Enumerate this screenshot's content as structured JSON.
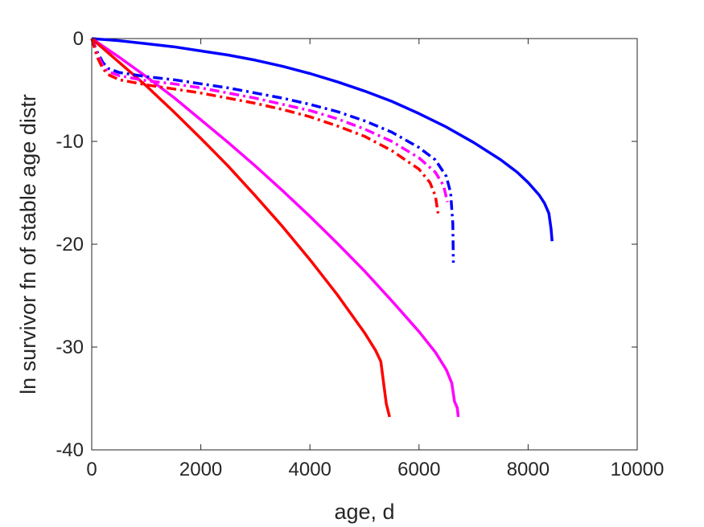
{
  "chart_data": {
    "type": "line",
    "title": "",
    "xlabel": "age, d",
    "ylabel": "ln survivor fn of stable age distr",
    "xlim": [
      0,
      10000
    ],
    "ylim": [
      -40,
      0
    ],
    "xticks": [
      0,
      2000,
      4000,
      6000,
      8000,
      10000
    ],
    "yticks": [
      0,
      -10,
      -20,
      -30,
      -40
    ],
    "xtick_labels": [
      "0",
      "2000",
      "4000",
      "6000",
      "8000",
      "10000"
    ],
    "ytick_labels": [
      "0",
      "-10",
      "-20",
      "-30",
      "-40"
    ],
    "grid": false,
    "legend": "none",
    "series": [
      {
        "color": "#0000ff",
        "style": "solid",
        "x": [
          0,
          500,
          1000,
          1500,
          2000,
          2500,
          3000,
          3500,
          4000,
          4500,
          5000,
          5500,
          6000,
          6500,
          7000,
          7500,
          7800,
          8000,
          8200,
          8300,
          8380,
          8420,
          8440
        ],
        "y": [
          0,
          -0.2,
          -0.5,
          -0.8,
          -1.2,
          -1.6,
          -2.1,
          -2.7,
          -3.4,
          -4.2,
          -5.1,
          -6.1,
          -7.3,
          -8.6,
          -10.1,
          -11.8,
          -13.0,
          -14.0,
          -15.2,
          -16.0,
          -17.0,
          -18.5,
          -19.7
        ]
      },
      {
        "color": "#ff00ff",
        "style": "solid",
        "x": [
          0,
          500,
          1000,
          1500,
          2000,
          2500,
          3000,
          3500,
          4000,
          4500,
          5000,
          5500,
          6000,
          6300,
          6500,
          6600,
          6650,
          6700,
          6720
        ],
        "y": [
          0,
          -1.8,
          -3.7,
          -5.7,
          -7.9,
          -10.1,
          -12.4,
          -14.8,
          -17.3,
          -19.9,
          -22.6,
          -25.5,
          -28.5,
          -30.5,
          -32.2,
          -33.5,
          -35.3,
          -35.9,
          -36.8
        ]
      },
      {
        "color": "#ff0000",
        "style": "solid",
        "x": [
          0,
          500,
          1000,
          1500,
          2000,
          2500,
          3000,
          3500,
          4000,
          4500,
          5000,
          5200,
          5300,
          5400,
          5460
        ],
        "y": [
          0,
          -2.3,
          -4.6,
          -7.1,
          -9.7,
          -12.4,
          -15.3,
          -18.3,
          -21.5,
          -24.9,
          -28.6,
          -30.3,
          -31.4,
          -35.5,
          -36.8
        ]
      },
      {
        "color": "#0000ff",
        "style": "dashdot",
        "x": [
          0,
          100,
          200,
          300,
          500,
          1000,
          1500,
          2000,
          2500,
          3000,
          3500,
          4000,
          4500,
          5000,
          5500,
          6000,
          6300,
          6500,
          6580,
          6620,
          6630
        ],
        "y": [
          0,
          -1.3,
          -2.3,
          -2.9,
          -3.3,
          -3.7,
          -4.0,
          -4.4,
          -4.8,
          -5.3,
          -5.8,
          -6.4,
          -7.1,
          -8.0,
          -9.1,
          -10.6,
          -11.8,
          -13.4,
          -15.0,
          -18.0,
          -21.8
        ]
      },
      {
        "color": "#ff00ff",
        "style": "dashdot",
        "x": [
          0,
          100,
          200,
          300,
          500,
          1000,
          1500,
          2000,
          2500,
          3000,
          3500,
          4000,
          4500,
          5000,
          5500,
          6000,
          6300,
          6450,
          6520
        ],
        "y": [
          0,
          -1.5,
          -2.6,
          -3.2,
          -3.6,
          -4.1,
          -4.4,
          -4.8,
          -5.3,
          -5.8,
          -6.4,
          -7.0,
          -7.8,
          -8.8,
          -10.0,
          -11.6,
          -13.0,
          -14.3,
          -15.9
        ]
      },
      {
        "color": "#ff0000",
        "style": "dashdot",
        "x": [
          0,
          100,
          200,
          300,
          500,
          1000,
          1500,
          2000,
          2500,
          3000,
          3500,
          4000,
          4500,
          5000,
          5500,
          6000,
          6200,
          6300,
          6350
        ],
        "y": [
          0,
          -1.8,
          -2.9,
          -3.5,
          -4.0,
          -4.5,
          -4.9,
          -5.3,
          -5.8,
          -6.3,
          -6.9,
          -7.6,
          -8.5,
          -9.5,
          -10.9,
          -12.7,
          -14.0,
          -15.3,
          -17.0
        ]
      }
    ]
  }
}
